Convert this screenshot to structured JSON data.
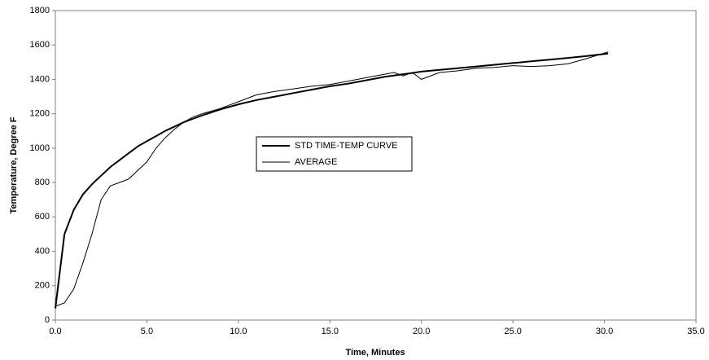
{
  "chart_data": {
    "type": "line",
    "x_label": "Time, Minutes",
    "y_label": "Temperature, Degree F",
    "x": [
      0,
      0.5,
      1,
      1.5,
      2,
      2.5,
      3,
      3.5,
      4,
      4.5,
      5,
      5.5,
      6,
      6.5,
      7,
      7.5,
      8,
      9,
      10,
      11,
      12,
      13,
      14,
      15,
      16,
      17,
      18,
      18.5,
      19,
      19.5,
      20,
      21,
      22,
      23,
      24,
      25,
      26,
      27,
      28,
      29,
      30.2
    ],
    "series": [
      {
        "name": "STD TIME-TEMP CURVE",
        "color": "#000000",
        "line_width": 2,
        "values": [
          68,
          500,
          640,
          730,
          790,
          840,
          890,
          930,
          970,
          1010,
          1040,
          1070,
          1100,
          1125,
          1150,
          1170,
          1190,
          1225,
          1255,
          1280,
          1300,
          1320,
          1340,
          1360,
          1375,
          1395,
          1415,
          1422,
          1430,
          1437,
          1445,
          1455,
          1465,
          1475,
          1485,
          1495,
          1505,
          1515,
          1525,
          1535,
          1550
        ]
      },
      {
        "name": "AVERAGE",
        "color": "#000000",
        "line_width": 1,
        "values": [
          80,
          100,
          180,
          330,
          500,
          700,
          780,
          800,
          820,
          870,
          920,
          1000,
          1060,
          1110,
          1150,
          1180,
          1200,
          1230,
          1270,
          1310,
          1330,
          1345,
          1360,
          1370,
          1390,
          1410,
          1430,
          1440,
          1420,
          1440,
          1400,
          1440,
          1450,
          1465,
          1470,
          1480,
          1475,
          1480,
          1490,
          1520,
          1560
        ]
      }
    ],
    "xlim": [
      0,
      35
    ],
    "xticks": [
      {
        "value": 0,
        "label": "0.0"
      },
      {
        "value": 5,
        "label": "5.0"
      },
      {
        "value": 10,
        "label": "10.0"
      },
      {
        "value": 15,
        "label": "15.0"
      },
      {
        "value": 20,
        "label": "20.0"
      },
      {
        "value": 25,
        "label": "25.0"
      },
      {
        "value": 30,
        "label": "30.0"
      },
      {
        "value": 35,
        "label": "35.0"
      }
    ],
    "ylim": [
      0,
      1800
    ],
    "yticks": [
      0,
      200,
      400,
      600,
      800,
      1000,
      1200,
      1400,
      1600,
      1800
    ],
    "grid": false
  }
}
